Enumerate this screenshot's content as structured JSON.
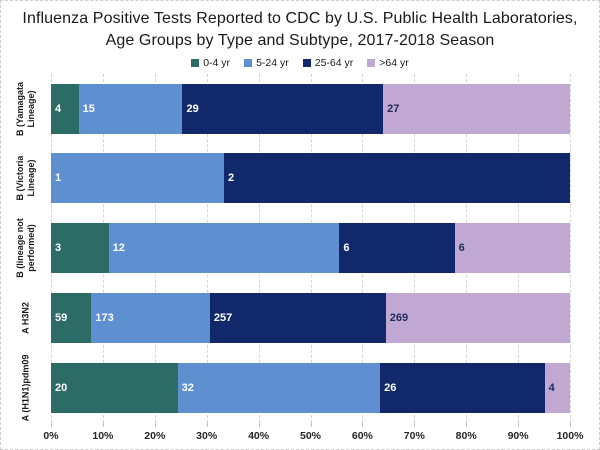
{
  "title": "Influenza Positive Tests Reported to CDC by U.S. Public Health Laboratories, Age Groups by Type and Subtype, 2017-2018 Season",
  "colors": {
    "age_0_4": "#2c6b66",
    "age_5_24": "#5e90d1",
    "age_25_64": "#11296b",
    "age_over_64": "#c1a8d2",
    "segment_label_light": "#ffffff",
    "segment_label_dark": "#1f2a5e",
    "gridline": "#d4d4d4",
    "axis_text": "#262626",
    "title_text": "#1a1a1a"
  },
  "chart_data": {
    "type": "bar",
    "subtype": "horizontal-100pct-stacked",
    "title": "Influenza Positive Tests Reported to CDC by U.S. Public Health Laboratories, Age Groups by Type and Subtype, 2017-2018 Season",
    "categories": [
      "B (Yamagata Lineage)",
      "B (Victoria Lineage)",
      "B (lineage not performed)",
      "A H3N2",
      "A (H1N1)pdm09"
    ],
    "series": [
      {
        "name": "0-4 yr",
        "color": "#2c6b66",
        "values": [
          4,
          0,
          3,
          59,
          20
        ]
      },
      {
        "name": "5-24 yr",
        "color": "#5e90d1",
        "values": [
          15,
          1,
          12,
          173,
          32
        ]
      },
      {
        "name": "25-64 yr",
        "color": "#11296b",
        "values": [
          29,
          2,
          6,
          257,
          26
        ]
      },
      {
        "name": ">64 yr",
        "color": "#c1a8d2",
        "values": [
          27,
          0,
          6,
          269,
          4
        ]
      }
    ],
    "x_ticks": [
      "0%",
      "10%",
      "20%",
      "30%",
      "40%",
      "50%",
      "60%",
      "70%",
      "80%",
      "90%",
      "100%"
    ],
    "xlim": [
      0,
      100
    ],
    "grid": true,
    "legend_position": "top",
    "bar_labels": "segment counts shown inside segments; zero-value segments hidden"
  }
}
